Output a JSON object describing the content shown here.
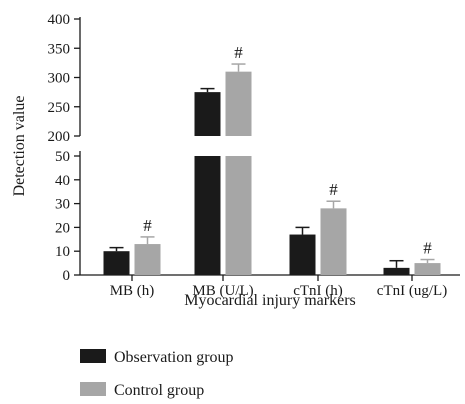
{
  "chart_data": {
    "type": "bar",
    "xlabel": "Myocardial injury markers",
    "ylabel": "Detection value",
    "categories": [
      "MB (h)",
      "MB (U/L)",
      "cTnI (h)",
      "cTnI (ug/L)"
    ],
    "series": [
      {
        "name": "Observation group",
        "color": "#1a1a1a",
        "values": [
          10,
          275,
          17,
          3
        ],
        "errors": [
          1.5,
          6,
          3,
          3
        ]
      },
      {
        "name": "Control group",
        "color": "#a6a6a6",
        "values": [
          13,
          310,
          28,
          5
        ],
        "errors": [
          3,
          13,
          3,
          1.5
        ]
      }
    ],
    "significance": [
      "#",
      "#",
      "#",
      "#"
    ],
    "axis_break": true,
    "y_lower_range": [
      0,
      50
    ],
    "y_lower_ticks": [
      "0",
      "10",
      "20",
      "30",
      "40",
      "50"
    ],
    "y_upper_range": [
      200,
      400
    ],
    "y_upper_ticks": [
      "200",
      "250",
      "300",
      "350",
      "400"
    ],
    "legend_position": "bottom-left",
    "grid": false
  }
}
